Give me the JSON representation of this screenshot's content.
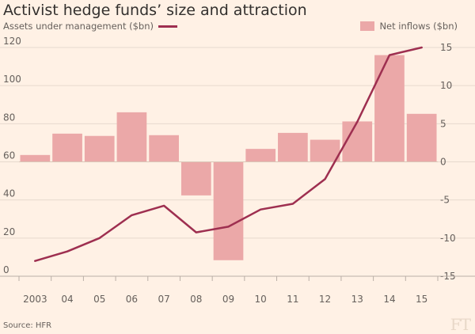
{
  "title": "Activist hedge funds’ size and attraction",
  "legend": {
    "left_label": "Assets under management ($bn)",
    "right_label": "Net inflows ($bn)"
  },
  "source": "Source: HFR",
  "logo": "FT",
  "colors": {
    "background": "#fff1e5",
    "bar": "#eba8a8",
    "line": "#9e2f50",
    "grid": "#e6d9ce",
    "text": "#66605c"
  },
  "chart_data": {
    "type": "bar+line",
    "categories": [
      "2003",
      "04",
      "05",
      "06",
      "07",
      "08",
      "09",
      "10",
      "11",
      "12",
      "13",
      "14",
      "15"
    ],
    "series": [
      {
        "name": "Net inflows ($bn)",
        "type": "bar",
        "axis": "right",
        "values": [
          0.9,
          3.7,
          3.4,
          6.5,
          3.5,
          -4.4,
          -12.9,
          1.7,
          3.8,
          2.9,
          5.3,
          14.0,
          6.3
        ]
      },
      {
        "name": "Assets under management ($bn)",
        "type": "line",
        "axis": "left",
        "values": [
          8,
          13,
          20,
          32,
          37,
          23,
          26,
          35,
          38,
          51,
          81,
          116,
          120
        ]
      }
    ],
    "left_axis": {
      "ticks": [
        "0",
        "20",
        "40",
        "60",
        "80",
        "100",
        "120"
      ],
      "range": [
        0,
        120
      ]
    },
    "right_axis": {
      "ticks": [
        "-15",
        "-10",
        "-5",
        "0",
        "5",
        "10",
        "15"
      ],
      "range": [
        -15,
        15
      ]
    },
    "grid": true
  }
}
